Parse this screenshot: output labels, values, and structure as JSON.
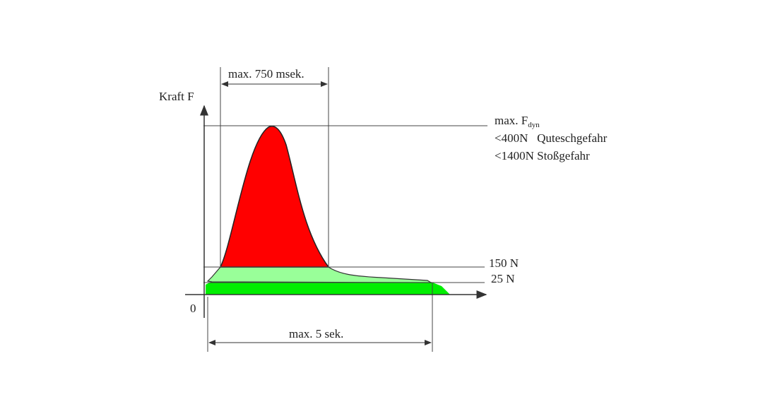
{
  "diagram": {
    "y_axis_label": "Kraft F",
    "origin_label": "0",
    "top_dimension_label": "max. 750 msek.",
    "bottom_dimension_label": "max. 5 sek.",
    "peak_label_main": "max. F",
    "peak_label_sub": "dyn",
    "limit_quetsch": "<400N   Quteschgefahr",
    "limit_stoss": "<1400N Stoßgefahr",
    "level_150": "150 N",
    "level_25": "25 N",
    "colors": {
      "peak_fill": "#ff0000",
      "mid_band_fill": "#99ff99",
      "low_band_fill": "#00ee00",
      "line": "#333333"
    }
  }
}
